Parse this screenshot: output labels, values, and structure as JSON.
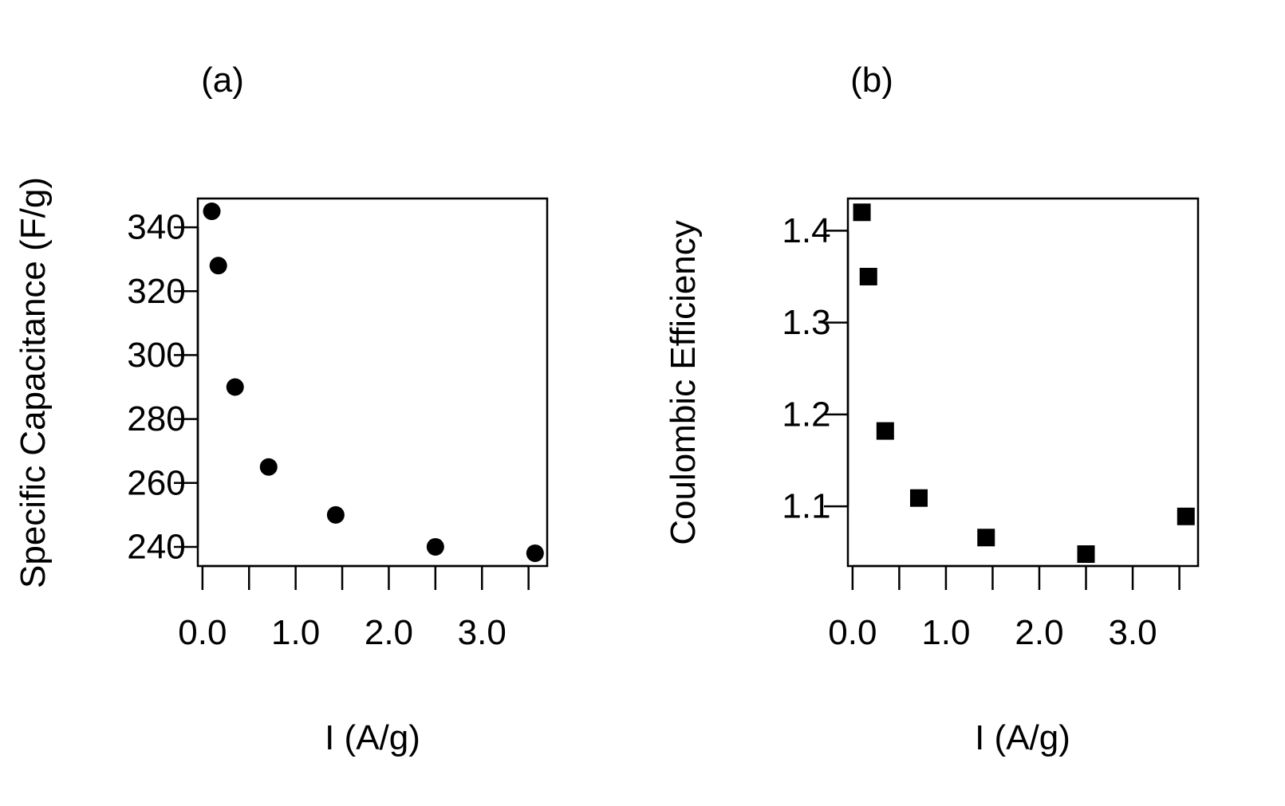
{
  "figure": {
    "colors": {
      "foreground": "#000000",
      "background": "#ffffff"
    }
  },
  "chart_data": [
    {
      "panel_label": "(a)",
      "type": "scatter",
      "marker": "circle",
      "xlabel": "I (A/g)",
      "ylabel": "Specific Capacitance (F/g)",
      "xlim": [
        -0.05,
        3.7
      ],
      "ylim": [
        234,
        349
      ],
      "x_ticks": [
        0.0,
        0.5,
        1.0,
        1.5,
        2.0,
        2.5,
        3.0,
        3.5
      ],
      "x_tick_labels": [
        "0.0",
        "1.0",
        "2.0",
        "3.0"
      ],
      "x_tick_label_values": [
        0.0,
        1.0,
        2.0,
        3.0
      ],
      "y_ticks": [
        240,
        260,
        280,
        300,
        320,
        340
      ],
      "y_tick_labels": [
        "240",
        "260",
        "280",
        "300",
        "320",
        "340"
      ],
      "series": [
        {
          "name": "Specific Capacitance",
          "x": [
            0.1,
            0.17,
            0.35,
            0.71,
            1.43,
            2.5,
            3.57
          ],
          "y": [
            345,
            328,
            290,
            265,
            250,
            240,
            238
          ]
        }
      ]
    },
    {
      "panel_label": "(b)",
      "type": "scatter",
      "marker": "square",
      "xlabel": "I (A/g)",
      "ylabel": "Coulombic Efficiency",
      "xlim": [
        -0.05,
        3.7
      ],
      "ylim": [
        1.035,
        1.435
      ],
      "x_ticks": [
        0.0,
        0.5,
        1.0,
        1.5,
        2.0,
        2.5,
        3.0,
        3.5
      ],
      "x_tick_labels": [
        "0.0",
        "1.0",
        "2.0",
        "3.0"
      ],
      "x_tick_label_values": [
        0.0,
        1.0,
        2.0,
        3.0
      ],
      "y_ticks": [
        1.1,
        1.2,
        1.3,
        1.4
      ],
      "y_tick_labels": [
        "1.1",
        "1.2",
        "1.3",
        "1.4"
      ],
      "series": [
        {
          "name": "Coulombic Efficiency",
          "x": [
            0.1,
            0.17,
            0.35,
            0.71,
            1.43,
            2.5,
            3.57
          ],
          "y": [
            1.42,
            1.35,
            1.182,
            1.109,
            1.066,
            1.048,
            1.089
          ]
        }
      ]
    }
  ]
}
